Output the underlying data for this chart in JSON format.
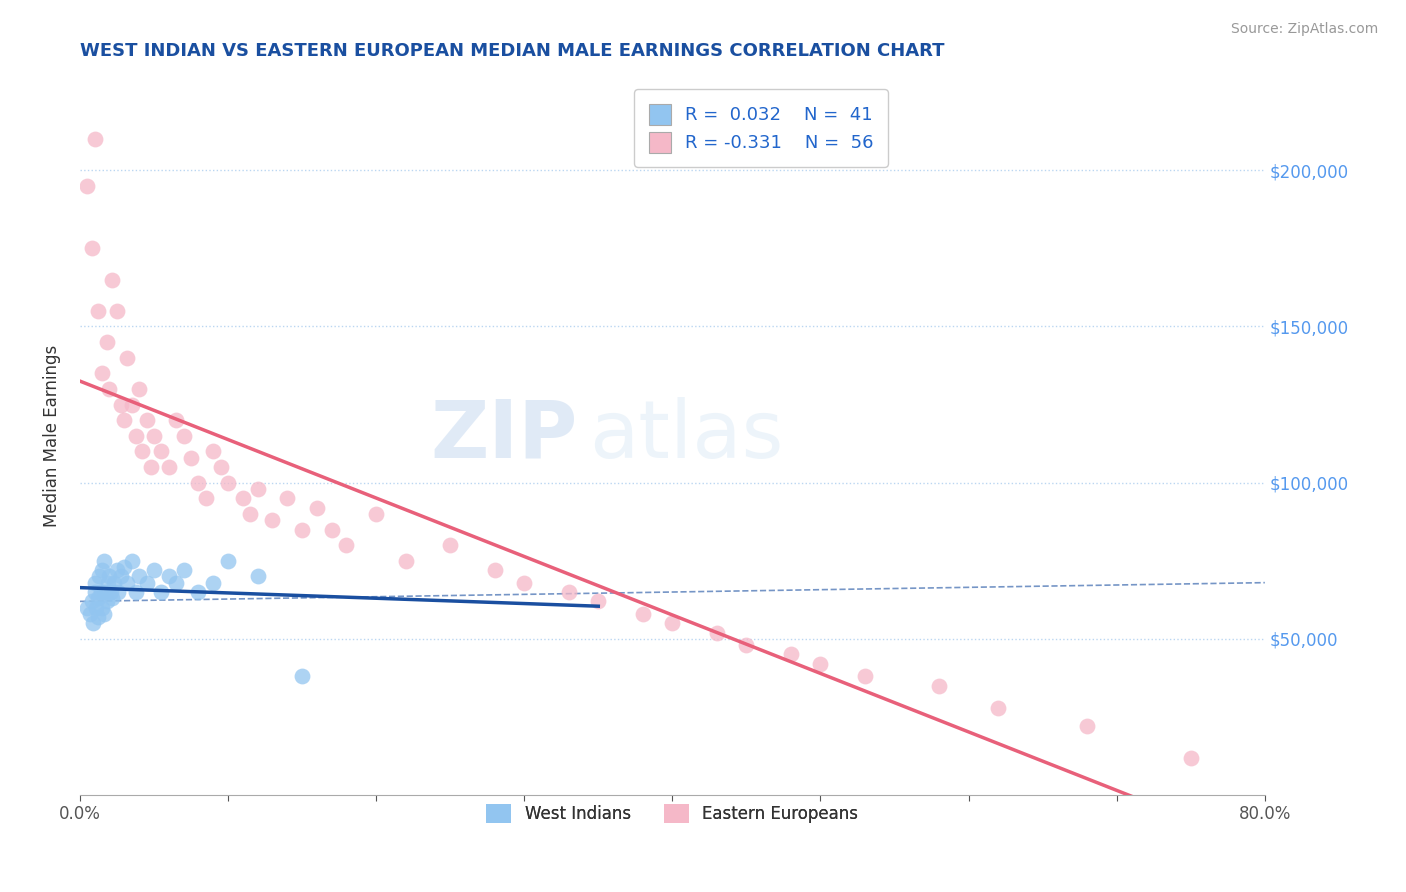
{
  "title": "WEST INDIAN VS EASTERN EUROPEAN MEDIAN MALE EARNINGS CORRELATION CHART",
  "source": "Source: ZipAtlas.com",
  "ylabel": "Median Male Earnings",
  "xlim": [
    0.0,
    0.8
  ],
  "ylim": [
    0,
    230000
  ],
  "yticks": [
    50000,
    100000,
    150000,
    200000
  ],
  "ytick_labels": [
    "$50,000",
    "$100,000",
    "$150,000",
    "$200,000"
  ],
  "background_color": "#ffffff",
  "watermark_zip": "ZIP",
  "watermark_atlas": "atlas",
  "blue_color": "#92c5f0",
  "pink_color": "#f5b8c8",
  "blue_line_color": "#1a4fa0",
  "pink_line_color": "#e8607a",
  "title_color": "#1a4fa0",
  "west_indian_x": [
    0.005,
    0.007,
    0.008,
    0.009,
    0.01,
    0.01,
    0.011,
    0.012,
    0.012,
    0.013,
    0.014,
    0.015,
    0.015,
    0.016,
    0.016,
    0.017,
    0.018,
    0.019,
    0.02,
    0.021,
    0.022,
    0.023,
    0.025,
    0.026,
    0.028,
    0.03,
    0.032,
    0.035,
    0.038,
    0.04,
    0.045,
    0.05,
    0.055,
    0.06,
    0.065,
    0.07,
    0.08,
    0.09,
    0.1,
    0.12,
    0.15
  ],
  "west_indian_y": [
    60000,
    58000,
    62000,
    55000,
    65000,
    68000,
    60000,
    63000,
    57000,
    70000,
    65000,
    60000,
    72000,
    58000,
    75000,
    65000,
    62000,
    68000,
    70000,
    65000,
    63000,
    68000,
    72000,
    65000,
    70000,
    73000,
    68000,
    75000,
    65000,
    70000,
    68000,
    72000,
    65000,
    70000,
    68000,
    72000,
    65000,
    68000,
    75000,
    70000,
    38000
  ],
  "eastern_european_x": [
    0.005,
    0.008,
    0.01,
    0.012,
    0.015,
    0.018,
    0.02,
    0.022,
    0.025,
    0.028,
    0.03,
    0.032,
    0.035,
    0.038,
    0.04,
    0.042,
    0.045,
    0.048,
    0.05,
    0.055,
    0.06,
    0.065,
    0.07,
    0.075,
    0.08,
    0.085,
    0.09,
    0.095,
    0.1,
    0.11,
    0.115,
    0.12,
    0.13,
    0.14,
    0.15,
    0.16,
    0.17,
    0.18,
    0.2,
    0.22,
    0.25,
    0.28,
    0.3,
    0.33,
    0.35,
    0.38,
    0.4,
    0.43,
    0.45,
    0.48,
    0.5,
    0.53,
    0.58,
    0.62,
    0.68,
    0.75
  ],
  "eastern_european_y": [
    195000,
    175000,
    210000,
    155000,
    135000,
    145000,
    130000,
    165000,
    155000,
    125000,
    120000,
    140000,
    125000,
    115000,
    130000,
    110000,
    120000,
    105000,
    115000,
    110000,
    105000,
    120000,
    115000,
    108000,
    100000,
    95000,
    110000,
    105000,
    100000,
    95000,
    90000,
    98000,
    88000,
    95000,
    85000,
    92000,
    85000,
    80000,
    90000,
    75000,
    80000,
    72000,
    68000,
    65000,
    62000,
    58000,
    55000,
    52000,
    48000,
    45000,
    42000,
    38000,
    35000,
    28000,
    22000,
    12000
  ]
}
